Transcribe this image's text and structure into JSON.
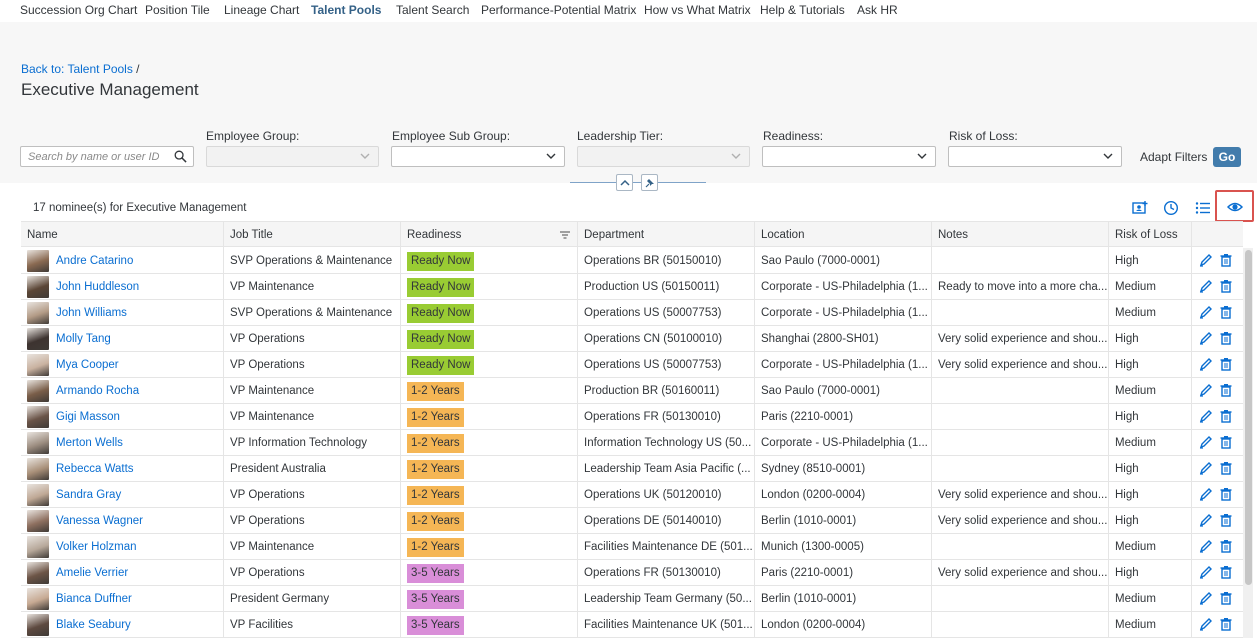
{
  "nav": {
    "items": [
      "Succession Org Chart",
      "Position Tile",
      "Lineage Chart",
      "Talent Pools",
      "Talent Search",
      "Performance-Potential Matrix",
      "How vs What Matrix",
      "Help & Tutorials",
      "Ask HR"
    ],
    "active": "Talent Pools"
  },
  "breadcrumb": {
    "link": "Back to: Talent Pools",
    "sep": " /"
  },
  "page_title": "Executive Management",
  "filters": {
    "search_placeholder": "Search by name or user ID",
    "labels": [
      "Employee Group:",
      "Employee Sub Group:",
      "Leadership Tier:",
      "Readiness:",
      "Risk of Loss:"
    ],
    "adapt": "Adapt Filters",
    "go": "Go"
  },
  "summary": "17 nominee(s) for Executive Management",
  "columns": [
    "Name",
    "Job Title",
    "Readiness",
    "Department",
    "Location",
    "Notes",
    "Risk of Loss"
  ],
  "colors": {
    "accent": "#0a6ed1",
    "ready_now": "#99cc33",
    "years_1_2": "#f5b655",
    "years_3_5": "#d98ed8",
    "highlight": "#d9534f"
  },
  "rows": [
    {
      "name": "Andre Catarino",
      "job": "SVP Operations & Maintenance",
      "readiness": "Ready Now",
      "dept": "Operations BR (50150010)",
      "loc": "Sao Paulo (7000-0001)",
      "notes": "",
      "risk": "High"
    },
    {
      "name": "John Huddleson",
      "job": "VP Maintenance",
      "readiness": "Ready Now",
      "dept": "Production US (50150011)",
      "loc": "Corporate - US-Philadelphia (1...",
      "notes": "Ready to move into a more cha...",
      "risk": "Medium"
    },
    {
      "name": "John Williams",
      "job": "SVP Operations & Maintenance",
      "readiness": "Ready Now",
      "dept": "Operations US (50007753)",
      "loc": "Corporate - US-Philadelphia (1...",
      "notes": "",
      "risk": "Medium"
    },
    {
      "name": "Molly Tang",
      "job": "VP Operations",
      "readiness": "Ready Now",
      "dept": "Operations CN (50100010)",
      "loc": "Shanghai (2800-SH01)",
      "notes": "Very solid experience and shou...",
      "risk": "High"
    },
    {
      "name": "Mya Cooper",
      "job": "VP Operations",
      "readiness": "Ready Now",
      "dept": "Operations US (50007753)",
      "loc": "Corporate - US-Philadelphia (1...",
      "notes": "Very solid experience and shou...",
      "risk": "High"
    },
    {
      "name": "Armando Rocha",
      "job": "VP Maintenance",
      "readiness": "1-2 Years",
      "dept": "Production BR (50160011)",
      "loc": "Sao Paulo (7000-0001)",
      "notes": "",
      "risk": "Medium"
    },
    {
      "name": "Gigi Masson",
      "job": "VP Maintenance",
      "readiness": "1-2 Years",
      "dept": "Operations FR (50130010)",
      "loc": "Paris (2210-0001)",
      "notes": "",
      "risk": "High"
    },
    {
      "name": "Merton Wells",
      "job": "VP Information Technology",
      "readiness": "1-2 Years",
      "dept": "Information Technology US (50...",
      "loc": "Corporate - US-Philadelphia (1...",
      "notes": "",
      "risk": "Medium"
    },
    {
      "name": "Rebecca Watts",
      "job": "President Australia",
      "readiness": "1-2 Years",
      "dept": "Leadership Team Asia Pacific (...",
      "loc": "Sydney (8510-0001)",
      "notes": "",
      "risk": "High"
    },
    {
      "name": "Sandra Gray",
      "job": "VP Operations",
      "readiness": "1-2 Years",
      "dept": "Operations UK (50120010)",
      "loc": "London (0200-0004)",
      "notes": "Very solid experience and shou...",
      "risk": "High"
    },
    {
      "name": "Vanessa Wagner",
      "job": "VP Operations",
      "readiness": "1-2 Years",
      "dept": "Operations DE (50140010)",
      "loc": "Berlin (1010-0001)",
      "notes": "Very solid experience and shou...",
      "risk": "High"
    },
    {
      "name": "Volker Holzman",
      "job": "VP Maintenance",
      "readiness": "1-2 Years",
      "dept": "Facilities Maintenance DE (501...",
      "loc": "Munich (1300-0005)",
      "notes": "",
      "risk": "Medium"
    },
    {
      "name": "Amelie Verrier",
      "job": "VP Operations",
      "readiness": "3-5 Years",
      "dept": "Operations FR (50130010)",
      "loc": "Paris (2210-0001)",
      "notes": "Very solid experience and shou...",
      "risk": "High"
    },
    {
      "name": "Bianca Duffner",
      "job": "President Germany",
      "readiness": "3-5 Years",
      "dept": "Leadership Team Germany (50...",
      "loc": "Berlin (1010-0001)",
      "notes": "",
      "risk": "Medium"
    },
    {
      "name": "Blake Seabury",
      "job": "VP Facilities",
      "readiness": "3-5 Years",
      "dept": "Facilities Maintenance UK (501...",
      "loc": "London (0200-0004)",
      "notes": "",
      "risk": "Medium"
    }
  ]
}
